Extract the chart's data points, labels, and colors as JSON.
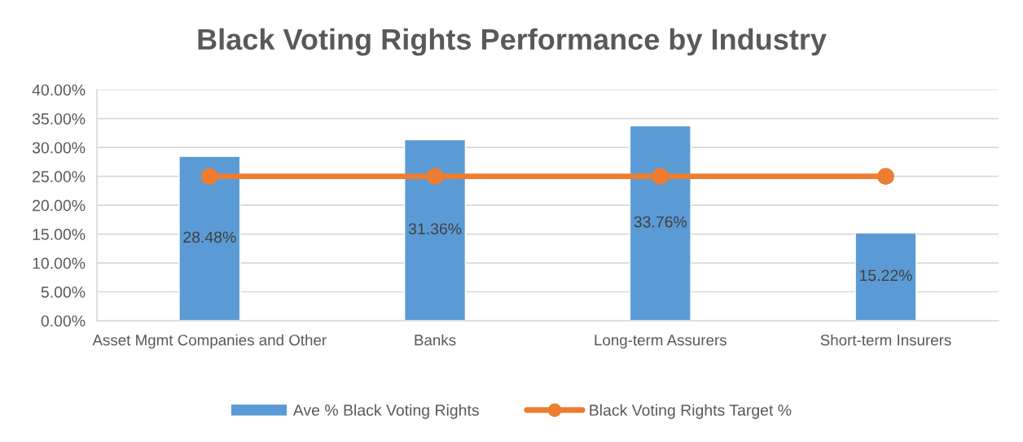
{
  "chart_data": {
    "type": "bar",
    "title": "Black Voting Rights Performance by Industry",
    "categories": [
      "Asset Mgmt Companies and Other",
      "Banks",
      "Long-term Assurers",
      "Short-term Insurers"
    ],
    "series": [
      {
        "name": "Ave % Black Voting Rights",
        "color": "#5b9bd5",
        "values": [
          28.48,
          31.36,
          33.76,
          15.22
        ],
        "value_labels": [
          "28.48%",
          "31.36%",
          "33.76%",
          "15.22%"
        ]
      },
      {
        "name": "Black Voting Rights Target %",
        "type": "line",
        "color": "#ed7d31",
        "values": [
          25,
          25,
          25,
          25
        ]
      }
    ],
    "ylim": [
      0,
      40
    ],
    "yticks": [
      {
        "value": 0,
        "label": "0.00%"
      },
      {
        "value": 5,
        "label": "5.00%"
      },
      {
        "value": 10,
        "label": "10.00%"
      },
      {
        "value": 15,
        "label": "15.00%"
      },
      {
        "value": 20,
        "label": "20.00%"
      },
      {
        "value": 25,
        "label": "25.00%"
      },
      {
        "value": 30,
        "label": "30.00%"
      },
      {
        "value": 35,
        "label": "35.00%"
      },
      {
        "value": 40,
        "label": "40.00%"
      }
    ],
    "grid": "y",
    "legend": "bottom",
    "marker": "circle"
  }
}
